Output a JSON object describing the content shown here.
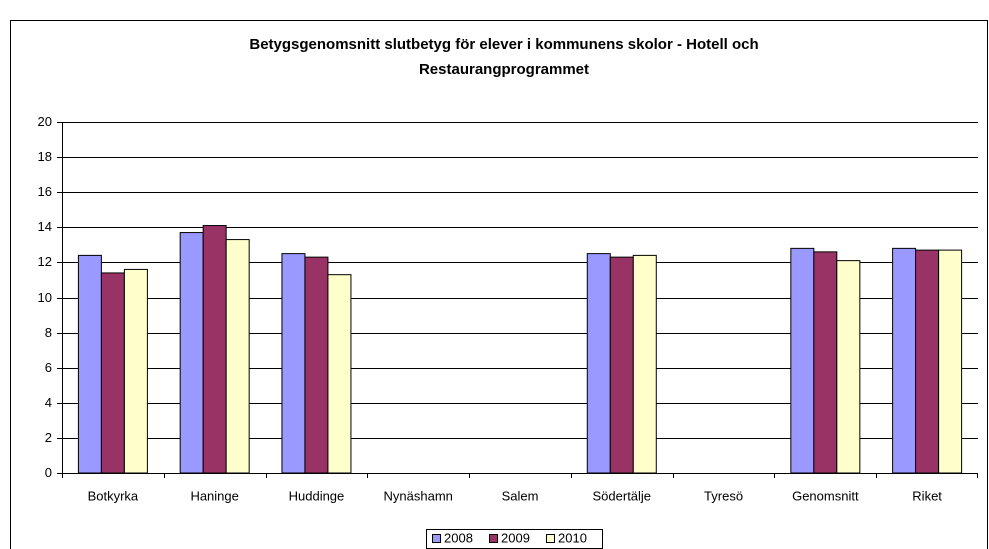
{
  "chart_data": {
    "type": "bar",
    "title": [
      "Betygsgenomsnitt slutbetyg för elever i kommunens skolor - Hotell och",
      "Restaurangprogrammet"
    ],
    "categories": [
      "Botkyrka",
      "Haninge",
      "Huddinge",
      "Nynäshamn",
      "Salem",
      "Södertälje",
      "Tyresö",
      "Genomsnitt",
      "Riket"
    ],
    "series": [
      {
        "name": "2008",
        "color": "#9999ff",
        "values": [
          12.4,
          13.7,
          12.5,
          null,
          null,
          12.5,
          null,
          12.8,
          12.8
        ]
      },
      {
        "name": "2009",
        "color": "#993366",
        "values": [
          11.4,
          14.1,
          12.3,
          null,
          null,
          12.3,
          null,
          12.6,
          12.7
        ]
      },
      {
        "name": "2010",
        "color": "#ffffcc",
        "values": [
          11.6,
          13.3,
          11.3,
          null,
          null,
          12.4,
          null,
          12.1,
          12.7
        ]
      }
    ],
    "ylim": [
      0,
      20
    ],
    "yticks": [
      0,
      2,
      4,
      6,
      8,
      10,
      12,
      14,
      16,
      18,
      20
    ],
    "grid": true,
    "legend": "bottom"
  }
}
